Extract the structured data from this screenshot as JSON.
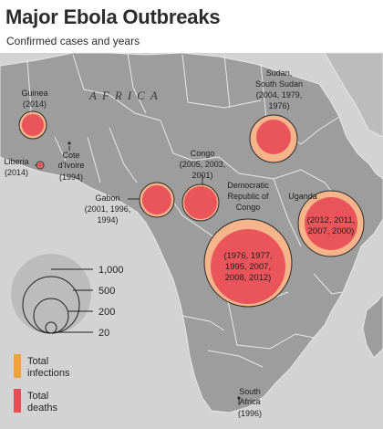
{
  "header": {
    "title": "Major Ebola Outbreaks",
    "subtitle": "Confirmed cases and years"
  },
  "colors": {
    "ocean": "#d3d3d3",
    "land": "#9b9b9b",
    "land_outside": "#bdbdbd",
    "border": "#e8e8e8",
    "infections": "#f0a23c",
    "deaths": "#e84b52",
    "bubble_fill": "#f6b98f",
    "bubble_ring": "#2b2b2b"
  },
  "map": {
    "continent_label": "AFRICA"
  },
  "outbreaks": [
    {
      "id": "guinea",
      "name": "Guinea",
      "years": "(2014)",
      "infections_scale": 0.3,
      "deaths_scale": 0.26
    },
    {
      "id": "liberia",
      "name": "Liberia",
      "years": "(2014)",
      "infections_scale": 0.08,
      "deaths_scale": 0.06
    },
    {
      "id": "cote",
      "name": "Cote d'Ivoire",
      "years": "(1994)",
      "infections_scale": 0.02,
      "deaths_scale": 0.0
    },
    {
      "id": "gabon",
      "name": "Gabon",
      "years": "(2001, 1996, 1994)",
      "infections_scale": 0.36,
      "deaths_scale": 0.3
    },
    {
      "id": "congo",
      "name": "Congo",
      "years": "(2005, 2003, 2001)",
      "infections_scale": 0.38,
      "deaths_scale": 0.34
    },
    {
      "id": "drc",
      "name": "Democratic Republic of Congo",
      "years": "(1976, 1977, 1995, 2007, 2008, 2012)",
      "infections_scale": 1.0,
      "deaths_scale": 0.85
    },
    {
      "id": "sudan",
      "name": "Sudan, South Sudan",
      "years": "(2004, 1979, 1976)",
      "infections_scale": 0.62,
      "deaths_scale": 0.45
    },
    {
      "id": "uganda",
      "name": "Uganda",
      "years": "(2012, 2011, 2007, 2000)",
      "infections_scale": 0.7,
      "deaths_scale": 0.58
    },
    {
      "id": "southafrica",
      "name": "South Africa",
      "years": "(1996)",
      "infections_scale": 0.02,
      "deaths_scale": 0.01
    }
  ],
  "labels": {
    "guinea_name": "Guinea",
    "guinea_years": "(2014)",
    "liberia_name": "Liberia",
    "liberia_years": "(2014)",
    "cote_l1": "Cote",
    "cote_l2": "d'Ivoire",
    "cote_years": "(1994)",
    "gabon_name": "Gabon",
    "gabon_l1": "(2001, 1996,",
    "gabon_l2": "1994)",
    "congo_name": "Congo",
    "congo_l1": "(2005, 2003,",
    "congo_l2": "2001)",
    "drc_l1": "Democratic",
    "drc_l2": "Republic of",
    "drc_l3": "Congo",
    "drc_y1": "(1976, 1977,",
    "drc_y2": "1995, 2007,",
    "drc_y3": "2008, 2012)",
    "sudan_l1": "Sudan,",
    "sudan_l2": "South Sudan",
    "sudan_y1": "(2004, 1979,",
    "sudan_y2": "1976)",
    "uganda_name": "Uganda",
    "uganda_y1": "(2012, 2011,",
    "uganda_y2": "2007, 2000)",
    "sa_l1": "South",
    "sa_l2": "Africa",
    "sa_years": "(1996)"
  },
  "legend": {
    "size_values": [
      "1,000",
      "500",
      "200",
      "20"
    ],
    "infections_l1": "Total",
    "infections_l2": "infections",
    "deaths_l1": "Total",
    "deaths_l2": "deaths"
  }
}
